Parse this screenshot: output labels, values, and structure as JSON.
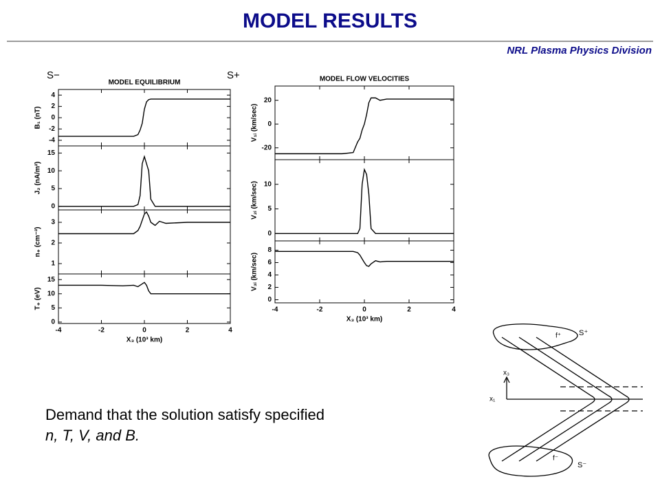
{
  "header": {
    "title": "MODEL  RESULTS",
    "subtitle": "NRL Plasma Physics Division"
  },
  "labels": {
    "s_minus": "S−",
    "s_plus": "S+"
  },
  "chart_data": [
    {
      "type": "line",
      "title": "MODEL EQUILIBRIUM",
      "ylabel": "B₁ (nT)",
      "color": "#000000",
      "x": [
        -4,
        -3,
        -2,
        -1,
        -0.5,
        -0.3,
        -0.2,
        -0.1,
        0,
        0.1,
        0.2,
        0.3,
        0.5,
        0.7,
        1,
        2,
        3,
        4
      ],
      "values": [
        -3.3,
        -3.3,
        -3.3,
        -3.3,
        -3.3,
        -3.0,
        -2.2,
        -1,
        1.5,
        2.8,
        3.2,
        3.3,
        3.3,
        3.3,
        3.3,
        3.3,
        3.3,
        3.3
      ],
      "xlim": [
        -4,
        4
      ],
      "ylim": [
        -5,
        5
      ],
      "xticks": [
        -4,
        -2,
        0,
        2,
        4
      ],
      "yticks": [
        -4,
        -2,
        0,
        2,
        4
      ]
    },
    {
      "type": "line",
      "ylabel": "J₂ (nA/m²)",
      "color": "#000000",
      "x": [
        -4,
        -3,
        -2,
        -1,
        -0.5,
        -0.3,
        -0.2,
        -0.1,
        0,
        0.1,
        0.2,
        0.3,
        0.5,
        0.7,
        1,
        2,
        3,
        4
      ],
      "values": [
        0,
        0,
        0,
        0,
        0,
        0.5,
        3,
        12,
        14,
        12,
        10,
        2,
        0,
        0,
        0,
        0,
        0,
        0
      ],
      "xlim": [
        -4,
        4
      ],
      "ylim": [
        -1,
        17
      ],
      "xticks": [
        -4,
        -2,
        0,
        2,
        4
      ],
      "yticks": [
        0,
        5,
        10,
        15
      ]
    },
    {
      "type": "line",
      "ylabel": "n₊ (cm⁻³)",
      "color": "#000000",
      "x": [
        -4,
        -3,
        -2,
        -1,
        -0.5,
        -0.3,
        -0.2,
        -0.1,
        0,
        0.1,
        0.2,
        0.3,
        0.5,
        0.7,
        1,
        2,
        3,
        4
      ],
      "values": [
        2.45,
        2.45,
        2.45,
        2.45,
        2.45,
        2.6,
        2.8,
        3.1,
        3.4,
        3.5,
        3.3,
        3.0,
        2.85,
        3.05,
        2.95,
        3.0,
        3.0,
        3.0
      ],
      "xlim": [
        -4,
        4
      ],
      "ylim": [
        0.5,
        3.6
      ],
      "xticks": [
        -4,
        -2,
        0,
        2,
        4
      ],
      "yticks": [
        1,
        2,
        3
      ]
    },
    {
      "type": "line",
      "ylabel": "T₊ (eV)",
      "xlabel": "X₃  (10³ km)",
      "color": "#000000",
      "x": [
        -4,
        -3,
        -2,
        -1,
        -0.5,
        -0.3,
        -0.2,
        -0.1,
        0,
        0.1,
        0.2,
        0.3,
        0.5,
        0.7,
        1,
        2,
        3,
        4
      ],
      "values": [
        13,
        13,
        13,
        12.8,
        13,
        12.5,
        13,
        13.5,
        14,
        13,
        11,
        10,
        10,
        10,
        10,
        10,
        10,
        10
      ],
      "xlim": [
        -4,
        4
      ],
      "ylim": [
        -0.5,
        17
      ],
      "xticks": [
        -4,
        -2,
        0,
        2,
        4
      ],
      "yticks": [
        0,
        5,
        10,
        15
      ]
    },
    {
      "type": "line",
      "title": "MODEL FLOW VELOCITIES",
      "ylabel": "V₁ᵢ (km/sec)",
      "color": "#000000",
      "x": [
        -4,
        -3,
        -2,
        -1,
        -0.5,
        -0.3,
        -0.2,
        -0.1,
        0,
        0.1,
        0.2,
        0.3,
        0.5,
        0.7,
        1,
        2,
        3,
        4
      ],
      "values": [
        -25,
        -25,
        -25,
        -25,
        -24,
        -15,
        -12,
        -5,
        0,
        8,
        18,
        22,
        22,
        20,
        21,
        21,
        21,
        21
      ],
      "xlim": [
        -4,
        4
      ],
      "ylim": [
        -30,
        32
      ],
      "xticks": [
        -4,
        -2,
        0,
        2,
        4
      ],
      "yticks": [
        -20,
        0,
        20
      ]
    },
    {
      "type": "line",
      "ylabel": "V₂ᵢ (km/sec)",
      "color": "#000000",
      "x": [
        -4,
        -3,
        -2,
        -1,
        -0.5,
        -0.3,
        -0.2,
        -0.1,
        0,
        0.1,
        0.2,
        0.3,
        0.5,
        0.7,
        1,
        2,
        3,
        4
      ],
      "values": [
        0,
        0,
        0,
        0,
        0,
        0,
        1,
        10,
        13,
        12,
        8,
        1,
        0,
        0,
        0,
        0,
        0,
        0
      ],
      "xlim": [
        -4,
        4
      ],
      "ylim": [
        -1.5,
        15
      ],
      "xticks": [
        -4,
        -2,
        0,
        2,
        4
      ],
      "yticks": [
        0,
        5,
        10
      ]
    },
    {
      "type": "line",
      "ylabel": "V₃ᵢ (km/sec)",
      "xlabel": "X₃  (10³ km)",
      "color": "#000000",
      "x": [
        -4,
        -3,
        -2,
        -1,
        -0.5,
        -0.3,
        -0.2,
        -0.1,
        0,
        0.1,
        0.2,
        0.3,
        0.5,
        0.7,
        1,
        2,
        3,
        4
      ],
      "values": [
        7.8,
        7.8,
        7.8,
        7.8,
        7.8,
        7.6,
        7.2,
        6.6,
        6.0,
        5.5,
        5.4,
        5.8,
        6.3,
        6.1,
        6.2,
        6.2,
        6.2,
        6.2
      ],
      "xlim": [
        -4,
        4
      ],
      "ylim": [
        -0.5,
        9.5
      ],
      "xticks": [
        -4,
        -2,
        0,
        2,
        4
      ],
      "yticks": [
        0,
        2,
        4,
        6,
        8
      ]
    }
  ],
  "body": {
    "line1": "Demand that the solution satisfy specified",
    "line2": "n, T, V, and B."
  },
  "diagram": {
    "s_plus": "S⁺",
    "f_plus": "f⁺",
    "x3": "x₃",
    "x1": "x₁",
    "f_minus": "f⁻",
    "s_minus": "S⁻"
  }
}
